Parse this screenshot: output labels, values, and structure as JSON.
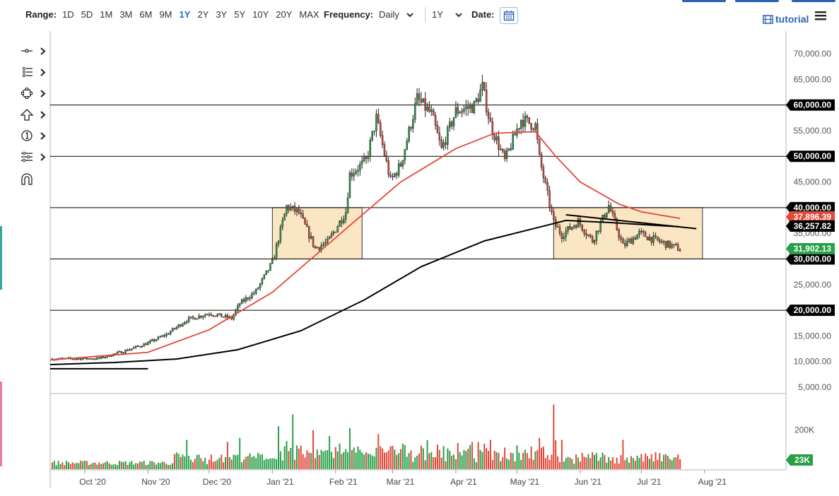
{
  "toolbar": {
    "range_label": "Range:",
    "ranges": [
      "1D",
      "5D",
      "1M",
      "3M",
      "6M",
      "9M",
      "1Y",
      "2Y",
      "3Y",
      "5Y",
      "10Y",
      "20Y",
      "MAX"
    ],
    "active_range": "1Y",
    "frequency_label": "Frequency:",
    "frequency_value": "Daily",
    "period_value": "1Y",
    "date_label": "Date:",
    "tutorial_label": "tutorial"
  },
  "tools": [
    {
      "name": "crosshair-tool",
      "icon": "crosshair-icon"
    },
    {
      "name": "line-tool",
      "icon": "trendline-icon"
    },
    {
      "name": "shape-tool",
      "icon": "shape-icon"
    },
    {
      "name": "arrow-tool",
      "icon": "arrow-up-icon"
    },
    {
      "name": "annotation-tool",
      "icon": "number-one-icon"
    },
    {
      "name": "fibonacci-tool",
      "icon": "fibonacci-icon"
    },
    {
      "name": "magnet-tool",
      "icon": "magnet-icon"
    }
  ],
  "colors": {
    "up": "#27a047",
    "down": "#e0483a",
    "ma_fast": "#e0483a",
    "ma_slow": "#000000",
    "box_fill": "#fbe6c4",
    "accent": "#2a64b0"
  },
  "chart_data": {
    "type": "candlestick",
    "y_axis": {
      "ticks": [
        "70,000.00",
        "65,000.00",
        "60,000.00",
        "55,000.00",
        "50,000.00",
        "45,000.00",
        "40,000.00",
        "35,000.00",
        "30,000.00",
        "25,000.00",
        "20,000.00",
        "15,000.00",
        "10,000.00",
        "5,000.00"
      ],
      "tick_values": [
        70000,
        65000,
        60000,
        55000,
        50000,
        45000,
        40000,
        35000,
        30000,
        25000,
        20000,
        15000,
        10000,
        5000
      ],
      "range": [
        4000,
        72000
      ]
    },
    "x_axis": {
      "labels": [
        "Oct '20",
        "Nov '20",
        "Dec '20",
        "Jan '21",
        "Feb '21",
        "Mar '21",
        "Apr '21",
        "May '21",
        "Jun '21",
        "Jul '21",
        "Aug '21"
      ],
      "label_dates": [
        "2020-10-01",
        "2020-11-01",
        "2020-12-01",
        "2021-01-01",
        "2021-02-01",
        "2021-03-01",
        "2021-04-01",
        "2021-05-01",
        "2021-06-01",
        "2021-07-01",
        "2021-08-01"
      ],
      "start_date": "2020-09-14",
      "end_date": "2021-08-16"
    },
    "horizontal_lines": [
      60000,
      50000,
      40000,
      30000,
      20000
    ],
    "horizontal_line_labels": [
      "60,000.00",
      "50,000.00",
      "40,000.00",
      "30,000.00",
      "20,000.00"
    ],
    "price_badges": [
      {
        "label": "37,896.39",
        "value": 37896.39,
        "color": "#e0483a"
      },
      {
        "label": "36,257.82",
        "value": 36257.82,
        "color": "#000000"
      },
      {
        "label": "31,902.13",
        "value": 31902.13,
        "color": "#27a047"
      }
    ],
    "boxes": [
      {
        "from": "2021-01-01",
        "to": "2021-02-14",
        "high": 40000,
        "low": 30000
      },
      {
        "from": "2021-05-19",
        "to": "2021-07-31",
        "high": 40000,
        "low": 30000
      }
    ],
    "trend_segments": [
      {
        "from": "2020-09-14",
        "to": "2020-11-01",
        "value": 8600
      },
      {
        "from": "2021-05-25",
        "to": "2021-07-28",
        "value": 38600,
        "end_value": 35900
      }
    ],
    "price_path": [
      [
        "2020-09-14",
        10500
      ],
      [
        "2020-10-08",
        10600
      ],
      [
        "2020-10-20",
        12000
      ],
      [
        "2020-11-01",
        13600
      ],
      [
        "2020-11-10",
        15300
      ],
      [
        "2020-11-20",
        18100
      ],
      [
        "2020-11-25",
        18700
      ],
      [
        "2020-12-01",
        19400
      ],
      [
        "2020-12-12",
        18400
      ],
      [
        "2020-12-16",
        21300
      ],
      [
        "2020-12-24",
        23700
      ],
      [
        "2021-01-01",
        29300
      ],
      [
        "2021-01-08",
        40200
      ],
      [
        "2021-01-14",
        39000
      ],
      [
        "2021-01-22",
        32100
      ],
      [
        "2021-01-28",
        33200
      ],
      [
        "2021-02-06",
        39200
      ],
      [
        "2021-02-08",
        46500
      ],
      [
        "2021-02-16",
        49100
      ],
      [
        "2021-02-21",
        57400
      ],
      [
        "2021-02-28",
        45200
      ],
      [
        "2021-03-05",
        48400
      ],
      [
        "2021-03-13",
        61200
      ],
      [
        "2021-03-20",
        58200
      ],
      [
        "2021-03-25",
        51300
      ],
      [
        "2021-04-01",
        58800
      ],
      [
        "2021-04-10",
        59800
      ],
      [
        "2021-04-14",
        63500
      ],
      [
        "2021-04-18",
        56200
      ],
      [
        "2021-04-25",
        49100
      ],
      [
        "2021-05-03",
        57200
      ],
      [
        "2021-05-10",
        56000
      ],
      [
        "2021-05-12",
        49600
      ],
      [
        "2021-05-19",
        37000
      ],
      [
        "2021-05-23",
        34700
      ],
      [
        "2021-05-31",
        37300
      ],
      [
        "2021-06-07",
        33500
      ],
      [
        "2021-06-15",
        40400
      ],
      [
        "2021-06-22",
        32500
      ],
      [
        "2021-06-30",
        35000
      ],
      [
        "2021-07-07",
        33800
      ],
      [
        "2021-07-14",
        32800
      ],
      [
        "2021-07-20",
        31902
      ]
    ],
    "ma_fast_path": [
      [
        "2020-09-14",
        10300
      ],
      [
        "2020-11-01",
        11800
      ],
      [
        "2020-12-01",
        16200
      ],
      [
        "2021-01-01",
        23500
      ],
      [
        "2021-01-20",
        30000
      ],
      [
        "2021-02-10",
        37200
      ],
      [
        "2021-03-05",
        45000
      ],
      [
        "2021-04-01",
        51500
      ],
      [
        "2021-04-20",
        54500
      ],
      [
        "2021-05-10",
        54800
      ],
      [
        "2021-05-20",
        50000
      ],
      [
        "2021-06-01",
        45000
      ],
      [
        "2021-06-20",
        40700
      ],
      [
        "2021-07-01",
        39200
      ],
      [
        "2021-07-20",
        37896
      ]
    ],
    "ma_slow_path": [
      [
        "2020-09-14",
        9400
      ],
      [
        "2020-10-15",
        9800
      ],
      [
        "2020-11-15",
        10500
      ],
      [
        "2020-12-15",
        12300
      ],
      [
        "2021-01-15",
        16000
      ],
      [
        "2021-02-15",
        22000
      ],
      [
        "2021-03-15",
        28500
      ],
      [
        "2021-04-15",
        33500
      ],
      [
        "2021-05-15",
        36500
      ],
      [
        "2021-05-25",
        37500
      ],
      [
        "2021-06-15",
        37100
      ],
      [
        "2021-07-20",
        36258
      ]
    ],
    "volume": {
      "axis_label": "200K",
      "axis_value": 200000,
      "max": 340000,
      "last_label": "23K",
      "last_value": 23000,
      "spikes": [
        [
          "2020-11-20",
          150000
        ],
        [
          "2020-12-10",
          140000
        ],
        [
          "2020-12-16",
          160000
        ],
        [
          "2021-01-04",
          220000
        ],
        [
          "2021-01-11",
          280000
        ],
        [
          "2021-01-21",
          200000
        ],
        [
          "2021-01-29",
          170000
        ],
        [
          "2021-02-08",
          210000
        ],
        [
          "2021-02-22",
          180000
        ],
        [
          "2021-03-15",
          120000
        ],
        [
          "2021-04-18",
          150000
        ],
        [
          "2021-05-12",
          160000
        ],
        [
          "2021-05-19",
          330000
        ],
        [
          "2021-05-23",
          150000
        ],
        [
          "2021-06-22",
          150000
        ]
      ]
    }
  }
}
